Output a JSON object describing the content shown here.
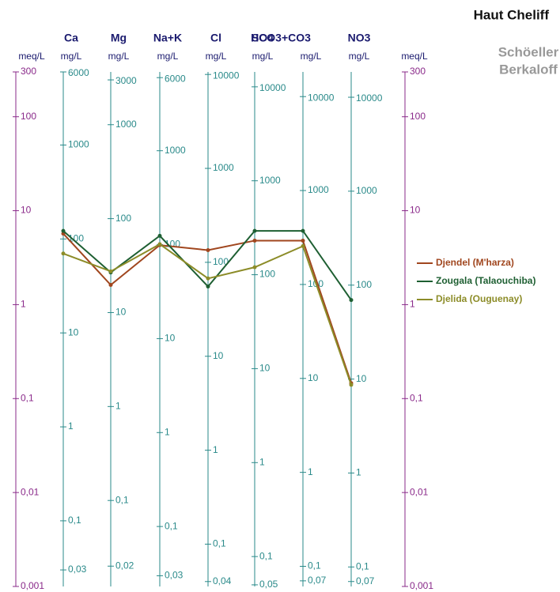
{
  "chart_data": {
    "type": "line",
    "title": "Haut Cheliff",
    "subtitle": [
      "Schöeller",
      "Berkaloff"
    ],
    "y_unit": "meq/L",
    "ion_unit": "mg/L",
    "categories": [
      "Ca",
      "Mg",
      "Na+K",
      "Cl",
      "SO4",
      "HCO3+CO3",
      "NO3"
    ],
    "ylog": true,
    "ylim": [
      0.001,
      300
    ],
    "yticks": [
      300,
      100,
      10,
      1,
      {
        "value": 0.1,
        "label": "0,1"
      },
      {
        "value": 0.01,
        "label": "0,01"
      },
      {
        "value": 0.001,
        "label": "0,001"
      }
    ],
    "ion_axes": [
      {
        "ticks": [
          {
            "value": 300,
            "label": "6000"
          },
          {
            "value": 50,
            "label": "1000"
          },
          {
            "value": 5,
            "label": "100"
          },
          {
            "value": 0.5,
            "label": "10"
          },
          {
            "value": 0.05,
            "label": "1"
          },
          {
            "value": 0.005,
            "label": "0,1"
          },
          {
            "value": 0.0015,
            "label": "0,03"
          }
        ]
      },
      {
        "ticks": [
          {
            "value": 246.9,
            "label": "3000"
          },
          {
            "value": 82.3,
            "label": "1000"
          },
          {
            "value": 8.23,
            "label": "100"
          },
          {
            "value": 0.823,
            "label": "10"
          },
          {
            "value": 0.0823,
            "label": "1"
          },
          {
            "value": 0.00823,
            "label": "0,1"
          },
          {
            "value": 0.001646,
            "label": "0,02"
          }
        ]
      },
      {
        "ticks": [
          {
            "value": 260.9,
            "label": "6000"
          },
          {
            "value": 43.48,
            "label": "1000"
          },
          {
            "value": 4.348,
            "label": "100"
          },
          {
            "value": 0.4348,
            "label": "10"
          },
          {
            "value": 0.04348,
            "label": "1"
          },
          {
            "value": 0.004348,
            "label": "0,1"
          },
          {
            "value": 0.0013,
            "label": "0,03"
          }
        ]
      },
      {
        "ticks": [
          {
            "value": 282.1,
            "label": "10000"
          },
          {
            "value": 28.21,
            "label": "1000"
          },
          {
            "value": 2.821,
            "label": "100"
          },
          {
            "value": 0.2821,
            "label": "10"
          },
          {
            "value": 0.02821,
            "label": "1"
          },
          {
            "value": 0.002821,
            "label": "0,1"
          },
          {
            "value": 0.001128,
            "label": "0,04"
          }
        ]
      },
      {
        "ticks": [
          {
            "value": 208.2,
            "label": "10000"
          },
          {
            "value": 20.82,
            "label": "1000"
          },
          {
            "value": 2.082,
            "label": "100"
          },
          {
            "value": 0.2082,
            "label": "10"
          },
          {
            "value": 0.02082,
            "label": "1"
          },
          {
            "value": 0.002082,
            "label": "0,1"
          },
          {
            "value": 0.001041,
            "label": "0,05"
          }
        ]
      },
      {
        "ticks": [
          {
            "value": 163.9,
            "label": "10000"
          },
          {
            "value": 16.39,
            "label": "1000"
          },
          {
            "value": 1.639,
            "label": "100"
          },
          {
            "value": 0.1639,
            "label": "10"
          },
          {
            "value": 0.01639,
            "label": "1"
          },
          {
            "value": 0.001639,
            "label": "0,1"
          },
          {
            "value": 0.001148,
            "label": "0,07"
          }
        ]
      },
      {
        "ticks": [
          {
            "value": 161.3,
            "label": "10000"
          },
          {
            "value": 16.13,
            "label": "1000"
          },
          {
            "value": 1.613,
            "label": "100"
          },
          {
            "value": 0.1613,
            "label": "10"
          },
          {
            "value": 0.01613,
            "label": "1"
          },
          {
            "value": 0.001613,
            "label": "0,1"
          },
          {
            "value": 0.001129,
            "label": "0,07"
          }
        ]
      }
    ],
    "series": [
      {
        "name": "Djendel (M'harza)",
        "color": "#a0461e",
        "values": [
          5.7,
          1.62,
          4.3,
          3.8,
          4.8,
          4.8,
          0.146
        ]
      },
      {
        "name": "Zougala (Talaouchiba)",
        "color": "#1e5f32",
        "values": [
          6.1,
          2.2,
          5.4,
          1.56,
          6.1,
          6.1,
          1.12
        ]
      },
      {
        "name": "Djelida (Ouguenay)",
        "color": "#8c8c28",
        "values": [
          3.5,
          2.26,
          4.4,
          1.9,
          2.5,
          4.2,
          0.14
        ]
      }
    ]
  }
}
